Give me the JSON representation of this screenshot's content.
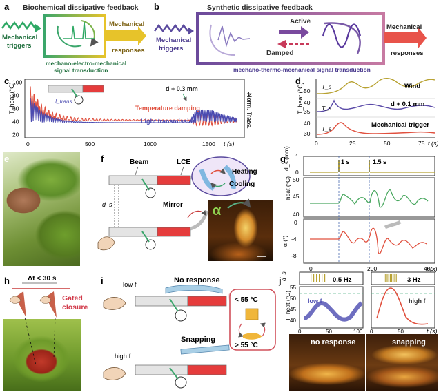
{
  "panel_a": {
    "letter": "a",
    "title": "Biochemical dissipative feedback",
    "input_label": [
      "Mechanical",
      "triggers"
    ],
    "output_label": [
      "Mechanical",
      "responses"
    ],
    "caption": [
      "mechano-electro-mechanical",
      "signal transduction"
    ]
  },
  "panel_b": {
    "letter": "b",
    "title": "Synthetic dissipative feedback",
    "input_label": [
      "Mechanical",
      "triggers"
    ],
    "output_label": [
      "Mechanical",
      "responses"
    ],
    "active": "Active",
    "damped": "Damped",
    "caption": "mechano-thermo-mechanical signal transduction"
  },
  "panel_c": {
    "letter": "c",
    "ylabel_left": "T_heat (°C)",
    "ylabel_right": "Norm. Trans.",
    "xlabel": "t (s)",
    "annotation": "d + 0.3 mm",
    "series_temp": "Temperature damping",
    "series_light": "Light transmission",
    "itrans": "I_trans.",
    "xticks": [
      "0",
      "500",
      "1000",
      "1500"
    ],
    "yticks_left": [
      "20",
      "40",
      "60",
      "80",
      "100"
    ],
    "yticks_right": [
      "0",
      "1"
    ]
  },
  "panel_d": {
    "letter": "d",
    "ylabel": "T_heat (°C)",
    "xlabel": "t (s)",
    "labels": [
      "Wind",
      "d + 0.1 mm",
      "Mechanical trigger"
    ],
    "ts": "T_s",
    "xticks": [
      "0",
      "25",
      "50",
      "75"
    ],
    "yticks_top": [
      "40",
      "50"
    ],
    "yticks_mid": [
      "35",
      "40"
    ],
    "yticks_bot": [
      "30",
      "40"
    ]
  },
  "panel_e": {
    "letter": "e"
  },
  "panel_f": {
    "letter": "f",
    "beam": "Beam",
    "lce": "LCE",
    "mirror": "Mirror",
    "heating": "Heating",
    "cooling": "Cooling",
    "ds": "d_s",
    "alpha": "α"
  },
  "panel_g": {
    "letter": "g",
    "ylabel_top": "d_s (mm)",
    "ylabel_mid": "T_heat (°C)",
    "ylabel_bot": "α (°)",
    "xlabel": "t (s)",
    "marker1": "1 s",
    "marker2": "1.5 s",
    "xticks": [
      "0",
      "200",
      "400"
    ],
    "yticks_top": [
      "0",
      "1"
    ],
    "yticks_mid": [
      "40",
      "45",
      "50"
    ],
    "yticks_bot": [
      "0",
      "-4",
      "-8"
    ]
  },
  "panel_h": {
    "letter": "h",
    "dt": "Δt < 30 s",
    "gated": [
      "Gated",
      "closure"
    ]
  },
  "panel_i": {
    "letter": "i",
    "low_f": "low f",
    "high_f": "high f",
    "no_response": "No response",
    "snapping": "Snapping",
    "lt": "< 55 °C",
    "gt": "> 55 °C"
  },
  "panel_j": {
    "letter": "j",
    "freq1": "0.5 Hz",
    "freq2": "3 Hz",
    "ylabel_top": "d_s",
    "ylabel_bot": "T_heat (°C)",
    "low_f": "low f",
    "high_f": "high f",
    "xlabel": "t (s)",
    "xticks": [
      "0",
      "50",
      "100"
    ],
    "yticks": [
      "40",
      "45",
      "50",
      "55"
    ],
    "photo_left": "no response",
    "photo_right": "snapping"
  }
}
